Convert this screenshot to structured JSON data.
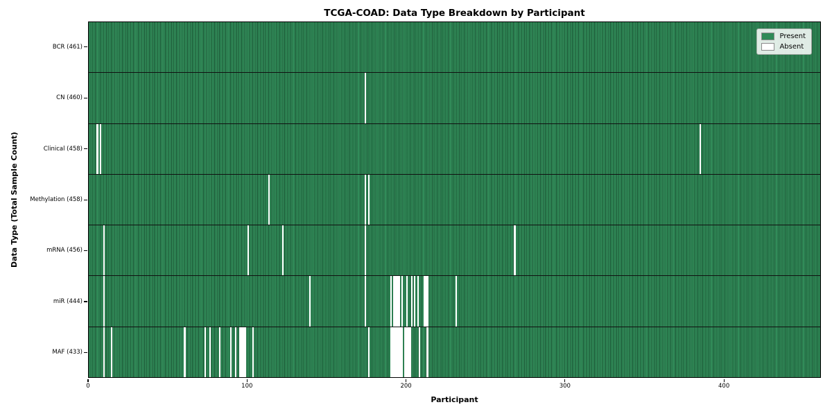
{
  "figure": {
    "title": "TCGA-COAD: Data Type Breakdown by Participant",
    "xlabel": "Participant",
    "ylabel": "Data Type (Total Sample Count)"
  },
  "legend": {
    "items": [
      {
        "name": "present",
        "label": "Present",
        "color": "#2e8b57"
      },
      {
        "name": "absent",
        "label": "Absent",
        "color": "#ffffff"
      }
    ]
  },
  "chart_data": {
    "type": "heatmap",
    "title": "TCGA-COAD: Data Type Breakdown by Participant",
    "xlabel": "Participant",
    "ylabel": "Data Type (Total Sample Count)",
    "x_ticks": [
      0,
      100,
      200,
      300,
      400
    ],
    "xlim": [
      0,
      461
    ],
    "n_participants": 461,
    "grid": false,
    "legend_position": "upper right",
    "colors": {
      "present": "#2e8b57",
      "absent": "#ffffff",
      "cell_edge": "#1b4a31"
    },
    "rows": [
      {
        "data_type": "BCR",
        "label": "BCR (461)",
        "present_count": 461,
        "absent_count": 0,
        "absent_participants": []
      },
      {
        "data_type": "CN",
        "label": "CN (460)",
        "present_count": 460,
        "absent_count": 1,
        "absent_participants": [
          174
        ]
      },
      {
        "data_type": "Clinical",
        "label": "Clinical (458)",
        "present_count": 458,
        "absent_count": 3,
        "absent_participants": [
          5,
          7,
          385
        ]
      },
      {
        "data_type": "Methylation",
        "label": "Methylation (458)",
        "present_count": 458,
        "absent_count": 3,
        "absent_participants": [
          113,
          174,
          176
        ]
      },
      {
        "data_type": "mRNA",
        "label": "mRNA (456)",
        "present_count": 456,
        "absent_count": 5,
        "absent_participants": [
          9,
          100,
          122,
          174,
          268
        ]
      },
      {
        "data_type": "miR",
        "label": "miR (444)",
        "present_count": 444,
        "absent_count": 17,
        "absent_participants": [
          9,
          139,
          174,
          190,
          192,
          193,
          194,
          195,
          197,
          200,
          203,
          205,
          207,
          211,
          212,
          213,
          231
        ]
      },
      {
        "data_type": "MAF",
        "label": "MAF (433)",
        "present_count": 433,
        "absent_count": 28,
        "absent_participants": [
          9,
          14,
          60,
          73,
          76,
          82,
          89,
          92,
          95,
          96,
          97,
          98,
          103,
          176,
          190,
          191,
          192,
          193,
          194,
          195,
          196,
          197,
          199,
          200,
          201,
          202,
          208,
          213
        ]
      }
    ]
  }
}
